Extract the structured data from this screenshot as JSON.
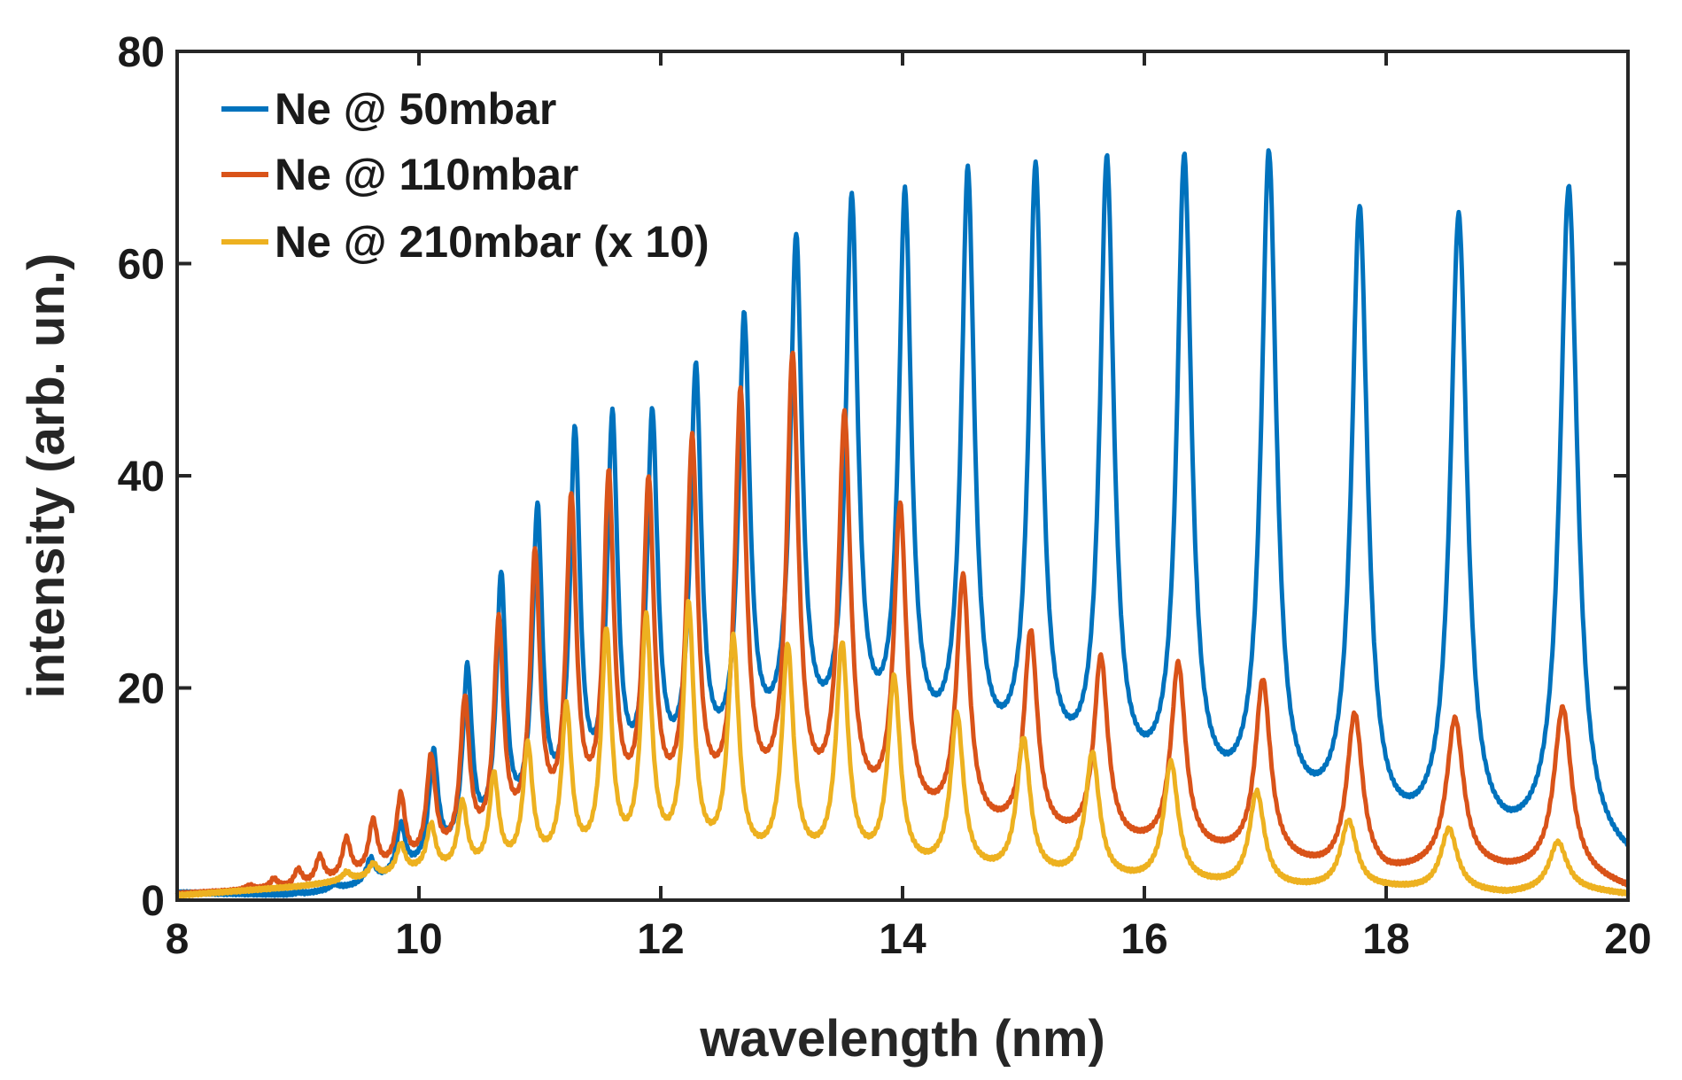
{
  "chart_data": {
    "type": "line",
    "title": "",
    "xlabel": "wavelength (nm)",
    "ylabel": "intensity (arb. un.)",
    "xlim": [
      8,
      20
    ],
    "ylim": [
      0,
      80
    ],
    "xticks": [
      8,
      10,
      12,
      14,
      16,
      18,
      20
    ],
    "yticks": [
      0,
      20,
      40,
      60,
      80
    ],
    "grid": false,
    "legend_position": "top-left",
    "series": [
      {
        "name": "Ne @ 50mbar",
        "color": "#0072BD",
        "start": 8.0,
        "baseline": [
          [
            8.0,
            0.6
          ],
          [
            9.0,
            0.3
          ],
          [
            9.6,
            1.2
          ],
          [
            10.0,
            2.5
          ],
          [
            10.4,
            4.0
          ],
          [
            11.0,
            6.0
          ],
          [
            11.5,
            8.0
          ],
          [
            12.0,
            9.5
          ],
          [
            12.5,
            11.0
          ],
          [
            13.0,
            13.0
          ],
          [
            13.5,
            13.0
          ],
          [
            14.0,
            12.5
          ],
          [
            15.0,
            11.0
          ],
          [
            16.0,
            9.0
          ],
          [
            17.0,
            7.0
          ],
          [
            17.5,
            6.0
          ],
          [
            18.0,
            4.8
          ],
          [
            18.5,
            4.5
          ],
          [
            19.0,
            4.0
          ],
          [
            19.5,
            4.5
          ],
          [
            20.0,
            3.0
          ]
        ],
        "peaks": [
          [
            9.0,
            0.5
          ],
          [
            9.3,
            1.2
          ],
          [
            9.6,
            3.5
          ],
          [
            9.85,
            6.5
          ],
          [
            10.12,
            13.2
          ],
          [
            10.4,
            20.8
          ],
          [
            10.68,
            29.2
          ],
          [
            10.98,
            35.3
          ],
          [
            11.29,
            42.3
          ],
          [
            11.6,
            43.6
          ],
          [
            11.93,
            43.8
          ],
          [
            12.29,
            48.2
          ],
          [
            12.69,
            53.0
          ],
          [
            13.12,
            60.5
          ],
          [
            13.58,
            64.0
          ],
          [
            14.02,
            64.5
          ],
          [
            14.54,
            66.8
          ],
          [
            15.1,
            67.2
          ],
          [
            15.69,
            68.0
          ],
          [
            16.33,
            68.3
          ],
          [
            17.03,
            68.8
          ],
          [
            17.78,
            63.8
          ],
          [
            18.6,
            63.3
          ],
          [
            19.51,
            66.5
          ]
        ]
      },
      {
        "name": "Ne @ 110mbar",
        "color": "#D95319",
        "start": 8.0,
        "baseline": [
          [
            8.0,
            0.5
          ],
          [
            9.0,
            1.0
          ],
          [
            9.8,
            2.5
          ],
          [
            10.2,
            3.5
          ],
          [
            10.6,
            4.5
          ],
          [
            11.0,
            5.5
          ],
          [
            11.5,
            6.5
          ],
          [
            12.0,
            7.0
          ],
          [
            12.5,
            7.5
          ],
          [
            13.0,
            8.0
          ],
          [
            13.5,
            7.5
          ],
          [
            14.0,
            7.0
          ],
          [
            15.0,
            5.5
          ],
          [
            16.0,
            4.5
          ],
          [
            17.0,
            3.5
          ],
          [
            17.5,
            2.5
          ],
          [
            18.0,
            2.0
          ],
          [
            18.5,
            3.0
          ],
          [
            19.0,
            2.5
          ],
          [
            19.5,
            2.5
          ],
          [
            20.0,
            1.0
          ]
        ],
        "peaks": [
          [
            8.6,
            1.2
          ],
          [
            8.8,
            1.8
          ],
          [
            9.0,
            2.6
          ],
          [
            9.18,
            3.8
          ],
          [
            9.4,
            5.4
          ],
          [
            9.62,
            7.0
          ],
          [
            9.85,
            9.3
          ],
          [
            10.1,
            12.8
          ],
          [
            10.38,
            18.0
          ],
          [
            10.66,
            25.2
          ],
          [
            10.96,
            31.2
          ],
          [
            11.26,
            36.3
          ],
          [
            11.57,
            38.3
          ],
          [
            11.9,
            37.8
          ],
          [
            12.26,
            41.8
          ],
          [
            12.66,
            46.3
          ],
          [
            13.09,
            49.8
          ],
          [
            13.52,
            44.3
          ],
          [
            13.98,
            36.0
          ],
          [
            14.5,
            29.6
          ],
          [
            15.06,
            24.6
          ],
          [
            15.64,
            22.3
          ],
          [
            16.28,
            21.8
          ],
          [
            16.98,
            20.3
          ],
          [
            17.74,
            17.2
          ],
          [
            18.57,
            16.8
          ],
          [
            19.46,
            18.0
          ]
        ]
      },
      {
        "name": "Ne @ 210mbar (x 10)",
        "color": "#EDB120",
        "start": 8.0,
        "baseline": [
          [
            8.0,
            0.4
          ],
          [
            9.0,
            1.2
          ],
          [
            10.0,
            2.5
          ],
          [
            10.5,
            2.5
          ],
          [
            11.0,
            3.0
          ],
          [
            12.0,
            3.2
          ],
          [
            13.0,
            3.0
          ],
          [
            13.5,
            3.0
          ],
          [
            14.0,
            2.5
          ],
          [
            15.0,
            2.0
          ],
          [
            16.0,
            1.5
          ],
          [
            17.0,
            1.0
          ],
          [
            17.5,
            1.0
          ],
          [
            18.0,
            1.0
          ],
          [
            18.5,
            0.8
          ],
          [
            19.0,
            0.5
          ],
          [
            19.5,
            1.0
          ],
          [
            20.0,
            0.5
          ]
        ],
        "peaks": [
          [
            9.4,
            2.5
          ],
          [
            9.62,
            3.2
          ],
          [
            9.85,
            5.0
          ],
          [
            10.1,
            6.8
          ],
          [
            10.36,
            8.8
          ],
          [
            10.62,
            11.3
          ],
          [
            10.9,
            14.0
          ],
          [
            11.22,
            17.5
          ],
          [
            11.55,
            24.5
          ],
          [
            11.88,
            25.6
          ],
          [
            12.23,
            26.8
          ],
          [
            12.6,
            23.8
          ],
          [
            13.05,
            23.2
          ],
          [
            13.5,
            23.4
          ],
          [
            13.93,
            20.3
          ],
          [
            14.45,
            17.0
          ],
          [
            15.0,
            14.8
          ],
          [
            15.57,
            13.5
          ],
          [
            16.22,
            12.7
          ],
          [
            16.93,
            10.0
          ],
          [
            17.69,
            7.3
          ],
          [
            18.52,
            6.6
          ],
          [
            19.42,
            5.4
          ]
        ]
      }
    ]
  }
}
